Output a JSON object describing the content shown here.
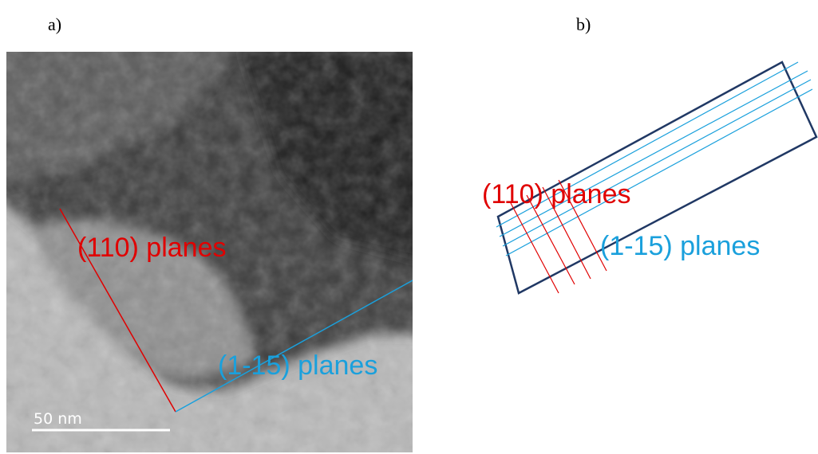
{
  "panel_a": {
    "label": "a)",
    "scale_bar": "50 nm",
    "annotations": [
      "(110) planes",
      "(1-15) planes"
    ]
  },
  "panel_b": {
    "label": "b)",
    "annotations": [
      "(110) planes",
      "(1-15) planes"
    ]
  }
}
